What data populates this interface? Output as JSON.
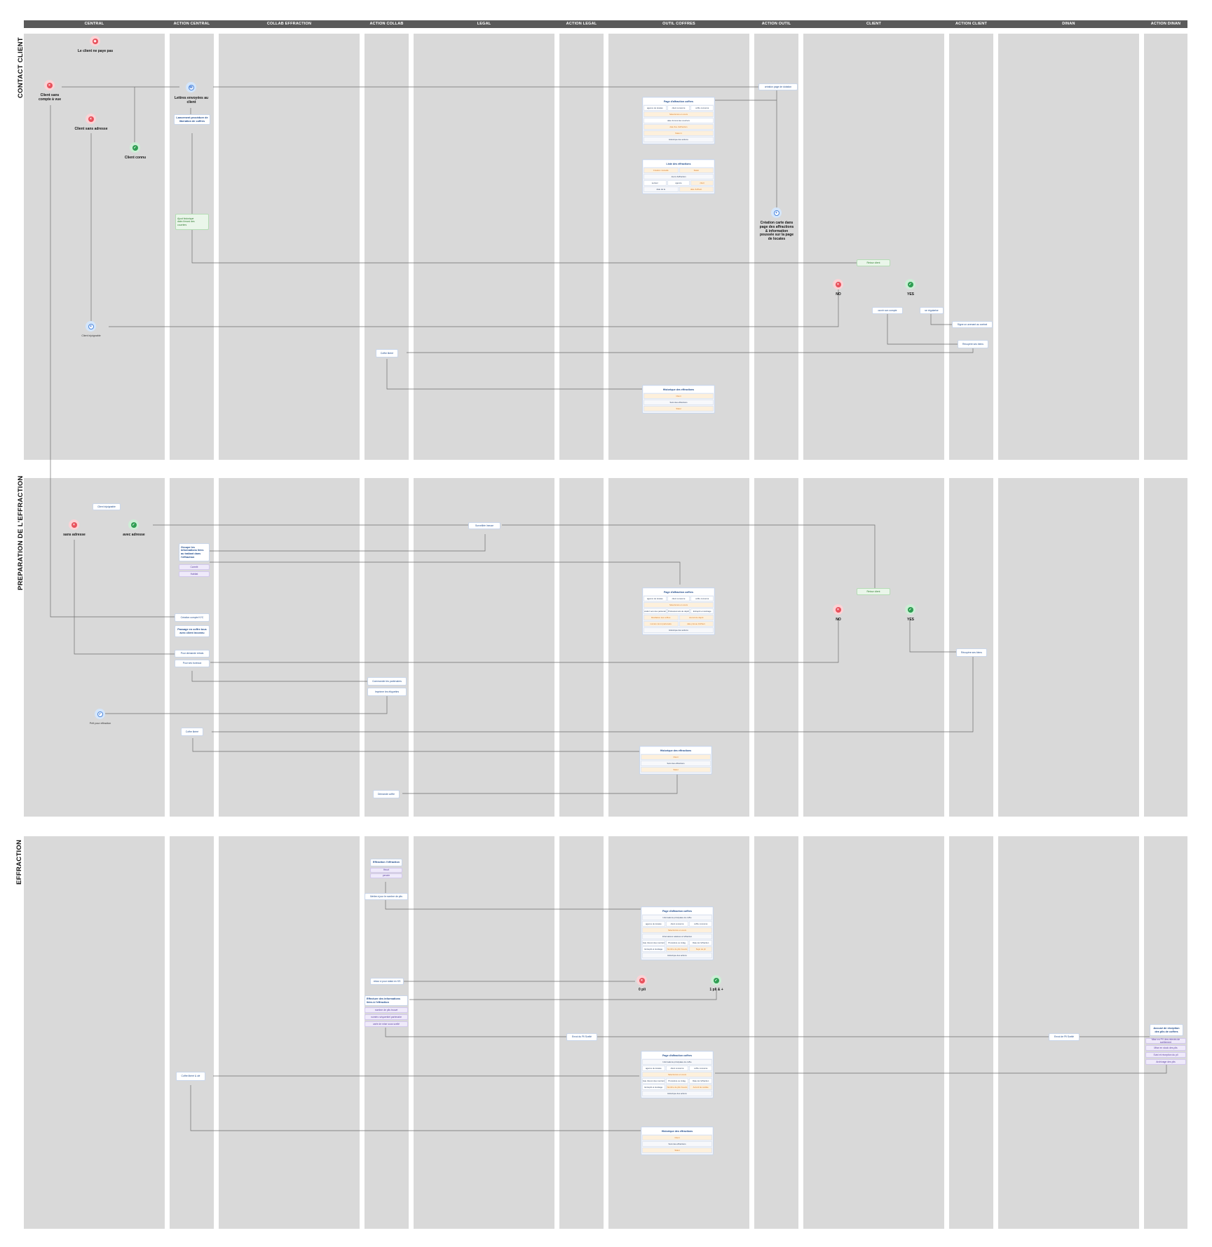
{
  "columns": [
    "CENTRAL",
    "ACTION CENTRAL",
    "COLLAB EFFRACTION",
    "ACTION COLLAB",
    "LEGAL",
    "ACTION LEGAL",
    "OUTIL COFFRES",
    "ACTION OUTIL",
    "CLIENT",
    "ACTION CLIENT",
    "DINAN",
    "ACTION DINAN"
  ],
  "sections": [
    "CONTACT CLIENT",
    "PREPARATION DE L'EFFRACTION",
    "EFFRACTION"
  ],
  "dots": {
    "nopay": "Le client ne paye pas",
    "sanscompte": "Client sans\ncompte à vue",
    "sansadresse": "Client sans adresse",
    "connu": "Client connu",
    "no1": "NO",
    "yes1": "YES",
    "injoignable": "Client injoignable",
    "sansadr2": "sans adresse",
    "avecadr2": "avec adresse",
    "no2": "NO",
    "yes2": "YES",
    "pret": "Prêt pour effraction",
    "zeropli": "0 pli",
    "unpli": "1 pli & +",
    "creation": "Création carte dans\npage des affractions\n& information\npoussée sur la page\nde locates",
    "lettres": "Lettres envoyées au\nclient"
  },
  "nodes": {
    "lancement": "Lancement procédure de\nliberation de coffres",
    "ajout": "Ajout historique\ndate d'envoi des\ncourriers",
    "creationpage": "création page de dotation",
    "retourclient1": "Retour client",
    "ouvrircompte": "ouvrir son compte",
    "regularise": "se régularise",
    "signecontrat": "Signe un avenant au contrat",
    "recupere1": "Récupère ses biens",
    "coffrelibere1": "Coffre libéré",
    "clientinjoignable2": "Client injoignable",
    "surveillee": "Surveillée Ineuse",
    "regroupe": "Groupe les\ninformations liées\nau traitant dans\nl'effraction",
    "mode1": "Carrelé",
    "mode2": "Habitat",
    "retourclient2": "Retour client",
    "creationcompte": "Création compte KYC",
    "passage": "Passage en coffre tous\navec client inconnu",
    "pourdemande": "Pour demande retrais",
    "pourclosure": "Pour ses bureaux",
    "commande": "Commander les partenaires",
    "imprimer": "Imprimer les étiquettes",
    "recupere2": "Récupère ses biens",
    "coffrelibere2": "Coffre libéré",
    "demandecoffre": "Demande coffre",
    "effractionsur": "Effraction l'effraction",
    "effopt1": "Heurt",
    "effopt2": "percée",
    "mettreajour": "Mettre à jour le nombre de plis",
    "retourpour": "retour à pour statut en KS",
    "effectuer": "Effectuer des informations\nliées à l'effraction",
    "effrow1": "nombre de plis trouvé",
    "effrow2": "numéro séquentiel partenaire",
    "effrow3": "carte de mise sous scellé",
    "envoipli": "Envoi du Pli Scellé",
    "envoipli2": "Envoi de Pli Scellé",
    "accuseil": "Accusé de réception\ndes plis de coffres",
    "dinrow1": "Mise en PV des relevés de scellement",
    "dinrow2": "Mise en stock des plis",
    "dinrow3": "Suivi et réception du pli",
    "dinrow4": "Archivage des plis",
    "coffrelibere3": "Coffre libéré & clé"
  },
  "tables": {
    "t1": {
      "title": "Page d'affraction coffres",
      "rows": [
        [
          "agence de locates",
          "client concerné",
          "coffre concerné"
        ],
        [
          "!Sélectionné en cours"
        ],
        [
          "date d'envoi des courriers"
        ],
        [
          "!date fixe d'effraction"
        ],
        [
          "!Statut 1"
        ],
        [
          "_Historique des actions"
        ]
      ]
    },
    "t2": {
      "title": "Liste des effractions",
      "rows": [
        [
          "!Création mutuelle",
          "!Statut"
        ],
        [
          "_Jours d'effraction"
        ],
        [
          "secteur",
          "agence",
          "!client"
        ],
        [
          "_date de la",
          "!date d'effract."
        ]
      ]
    },
    "t3": {
      "title": "Historique des effractions",
      "rows": [
        [
          "!Client"
        ],
        [
          "_Suivi des effractions"
        ],
        [
          "!Statut"
        ]
      ]
    },
    "t4": {
      "title": "Page d'affraction coffres",
      "rows": [
        [
          "agence de locates",
          "client concerné",
          "coffre concerné"
        ],
        [
          "!Sélectionné en cours"
        ],
        [
          "Transfert vers des partenaires",
          "Professionnels de dépôt",
          "Entrepôt et stockage"
        ],
        [
          "!Résiliation des coffres",
          "!Accord de dépôt"
        ],
        [
          "!numéro de lot partenaire",
          "!date prévue d'effract."
        ],
        [
          "_Historique des actions"
        ]
      ]
    },
    "t5": {
      "title": "Historique des effractions",
      "rows": [
        [
          "!Client"
        ],
        [
          "_Suivi des effractions"
        ],
        [
          "!Statut"
        ]
      ]
    },
    "t6": {
      "title": "Page d'affraction coffres",
      "rows": [
        [
          "_Informations principales du coffre"
        ],
        [
          "agence de locates",
          "client concerné",
          "coffre concerné"
        ],
        [
          "!Sélectionné en cours"
        ],
        [
          "_Informations relatives à l'effraction"
        ],
        [
          "Date d'envoi des courriers",
          "Procédure ou indag.",
          "Date de l'effraction"
        ],
        [
          "Entrepôt et stockage",
          "!Nombre de plis trouvés",
          "!Sujet de pli"
        ],
        [
          "_Historique des actions"
        ]
      ]
    },
    "t7": {
      "title": "Page d'affraction coffres",
      "rows": [
        [
          "_Informations principales du coffre"
        ],
        [
          "agence de locates",
          "client concerné",
          "coffre concerné"
        ],
        [
          "!Sélectionné en cours"
        ],
        [
          "Date d'envoi des courriers",
          "Procédure ou indag.",
          "Date de l'effraction"
        ],
        [
          "Entrepôt et stockage",
          "!Nombre de plis trouvés",
          "!Accord de scellée"
        ],
        [
          "_Historique des actions"
        ]
      ]
    },
    "t8": {
      "title": "Historique des effractions",
      "rows": [
        [
          "!Client"
        ],
        [
          "_Suivi des effractions"
        ],
        [
          "!Statut"
        ]
      ]
    }
  }
}
